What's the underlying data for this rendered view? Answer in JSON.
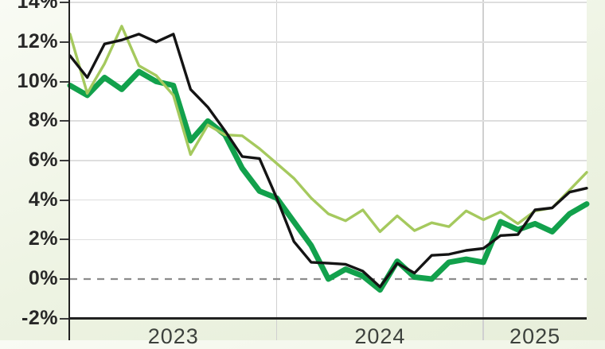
{
  "colors": {
    "background_margin": "#edf3e2",
    "plot_background": "#ffffff",
    "gridline": "#dedede",
    "year_gridline": "#d0d0d0",
    "zero_line": "#8c8c8c",
    "axis": "#212121",
    "tick": "#3a3a3a",
    "y_label_text": "#272727",
    "year_label_text": "#3c413c",
    "series_black": "#141414",
    "series_dark_green": "#12a14c",
    "series_light_green": "#a5c95e"
  },
  "y_axis": {
    "ticks": [
      {
        "label": "14%",
        "value": 14
      },
      {
        "label": "12%",
        "value": 12
      },
      {
        "label": "10%",
        "value": 10
      },
      {
        "label": "8%",
        "value": 8
      },
      {
        "label": "6%",
        "value": 6
      },
      {
        "label": "4%",
        "value": 4
      },
      {
        "label": "2%",
        "value": 2
      },
      {
        "label": "0%",
        "value": 0
      },
      {
        "label": "-2%",
        "value": -2
      }
    ]
  },
  "x_axis": {
    "year_labels": [
      {
        "label": "2023",
        "center_index": 6
      },
      {
        "label": "2024",
        "center_index": 18
      },
      {
        "label": "2025",
        "center_index": 27
      }
    ],
    "year_boundary_indices": [
      12,
      24
    ]
  },
  "chart_data": {
    "type": "line",
    "x": [
      "Jan 2023",
      "Feb 2023",
      "Mar 2023",
      "Apr 2023",
      "May 2023",
      "Jun 2023",
      "Jul 2023",
      "Aug 2023",
      "Sep 2023",
      "Oct 2023",
      "Nov 2023",
      "Dec 2023",
      "Jan 2024",
      "Feb 2024",
      "Mar 2024",
      "Apr 2024",
      "May 2024",
      "Jun 2024",
      "Jul 2024",
      "Aug 2024",
      "Sep 2024",
      "Oct 2024",
      "Nov 2024",
      "Dec 2024",
      "Jan 2025",
      "Feb 2025",
      "Mar 2025",
      "Apr 2025",
      "May 2025",
      "Jun 2025",
      "Jul 2025"
    ],
    "xlabel": "",
    "ylabel": "",
    "ylim": [
      -2.1,
      14.6
    ],
    "grid": true,
    "zero_line_dashed": true,
    "legend": "none visible (cropped)",
    "series": [
      {
        "name": "dark-green-line",
        "color": "#12a14c",
        "stroke_width": 7,
        "values": [
          9.8,
          9.3,
          10.2,
          9.6,
          10.5,
          10.0,
          9.8,
          7.0,
          8.0,
          7.3,
          5.6,
          4.45,
          4.1,
          2.9,
          1.7,
          0.0,
          0.5,
          0.15,
          -0.55,
          0.9,
          0.1,
          0.0,
          0.85,
          1.0,
          0.85,
          2.9,
          2.5,
          2.8,
          2.4,
          3.3,
          3.8
        ]
      },
      {
        "name": "light-green-line",
        "color": "#a5c95e",
        "stroke_width": 3.4,
        "values": [
          12.4,
          9.4,
          10.9,
          12.8,
          10.8,
          10.3,
          9.3,
          6.3,
          7.8,
          7.3,
          7.25,
          6.6,
          5.85,
          5.1,
          4.1,
          3.3,
          2.95,
          3.5,
          2.4,
          3.2,
          2.45,
          2.85,
          2.65,
          3.45,
          3.0,
          3.4,
          2.8,
          3.45,
          3.6,
          4.5,
          5.4
        ]
      },
      {
        "name": "black-line",
        "color": "#141414",
        "stroke_width": 3.4,
        "values": [
          11.3,
          10.2,
          11.9,
          12.1,
          12.4,
          12.0,
          12.4,
          9.6,
          8.7,
          7.5,
          6.2,
          6.1,
          4.1,
          1.9,
          0.85,
          0.8,
          0.75,
          0.4,
          -0.4,
          0.8,
          0.3,
          1.2,
          1.25,
          1.45,
          1.55,
          2.2,
          2.25,
          3.5,
          3.6,
          4.4,
          4.6
        ]
      }
    ]
  }
}
